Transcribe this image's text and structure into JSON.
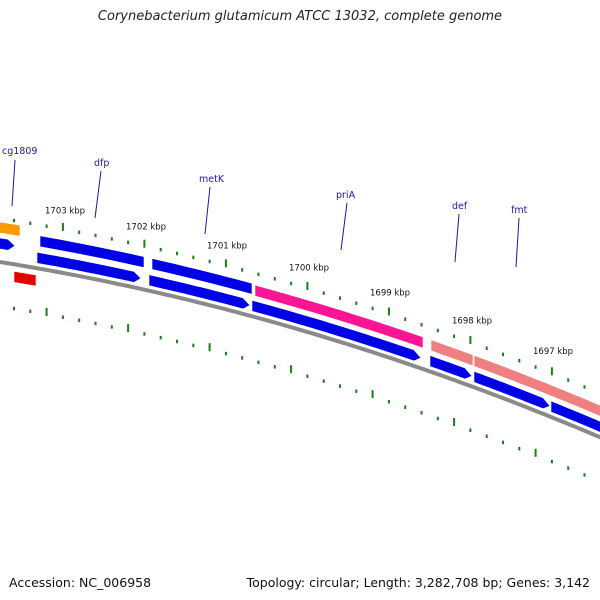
{
  "title": "Corynebacterium glutamicum ATCC 13032, complete genome",
  "colors": {
    "background": "#ffffff",
    "backbone": "#8a8a8a",
    "tick": "#1a7f1a",
    "cds_blue": "#0000e6",
    "cds_pink": "#ff1493",
    "cds_salmon": "#f08080",
    "cds_orange": "#ff9900",
    "cds_red": "#e60000",
    "gene_label": "#1a1aa0",
    "kbp_label": "#111111"
  },
  "kbp_labels": [
    "1703 kbp",
    "1702 kbp",
    "1701 kbp",
    "1700 kbp",
    "1699 kbp",
    "1698 kbp",
    "1697 kbp"
  ],
  "gene_labels": [
    "cg1809",
    "dfp",
    "metK",
    "priA",
    "def",
    "fmt"
  ],
  "footer": {
    "accession": "Accession: NC_006958",
    "summary": "Topology: circular; Length: 3,282,708 bp; Genes: 3,142"
  }
}
